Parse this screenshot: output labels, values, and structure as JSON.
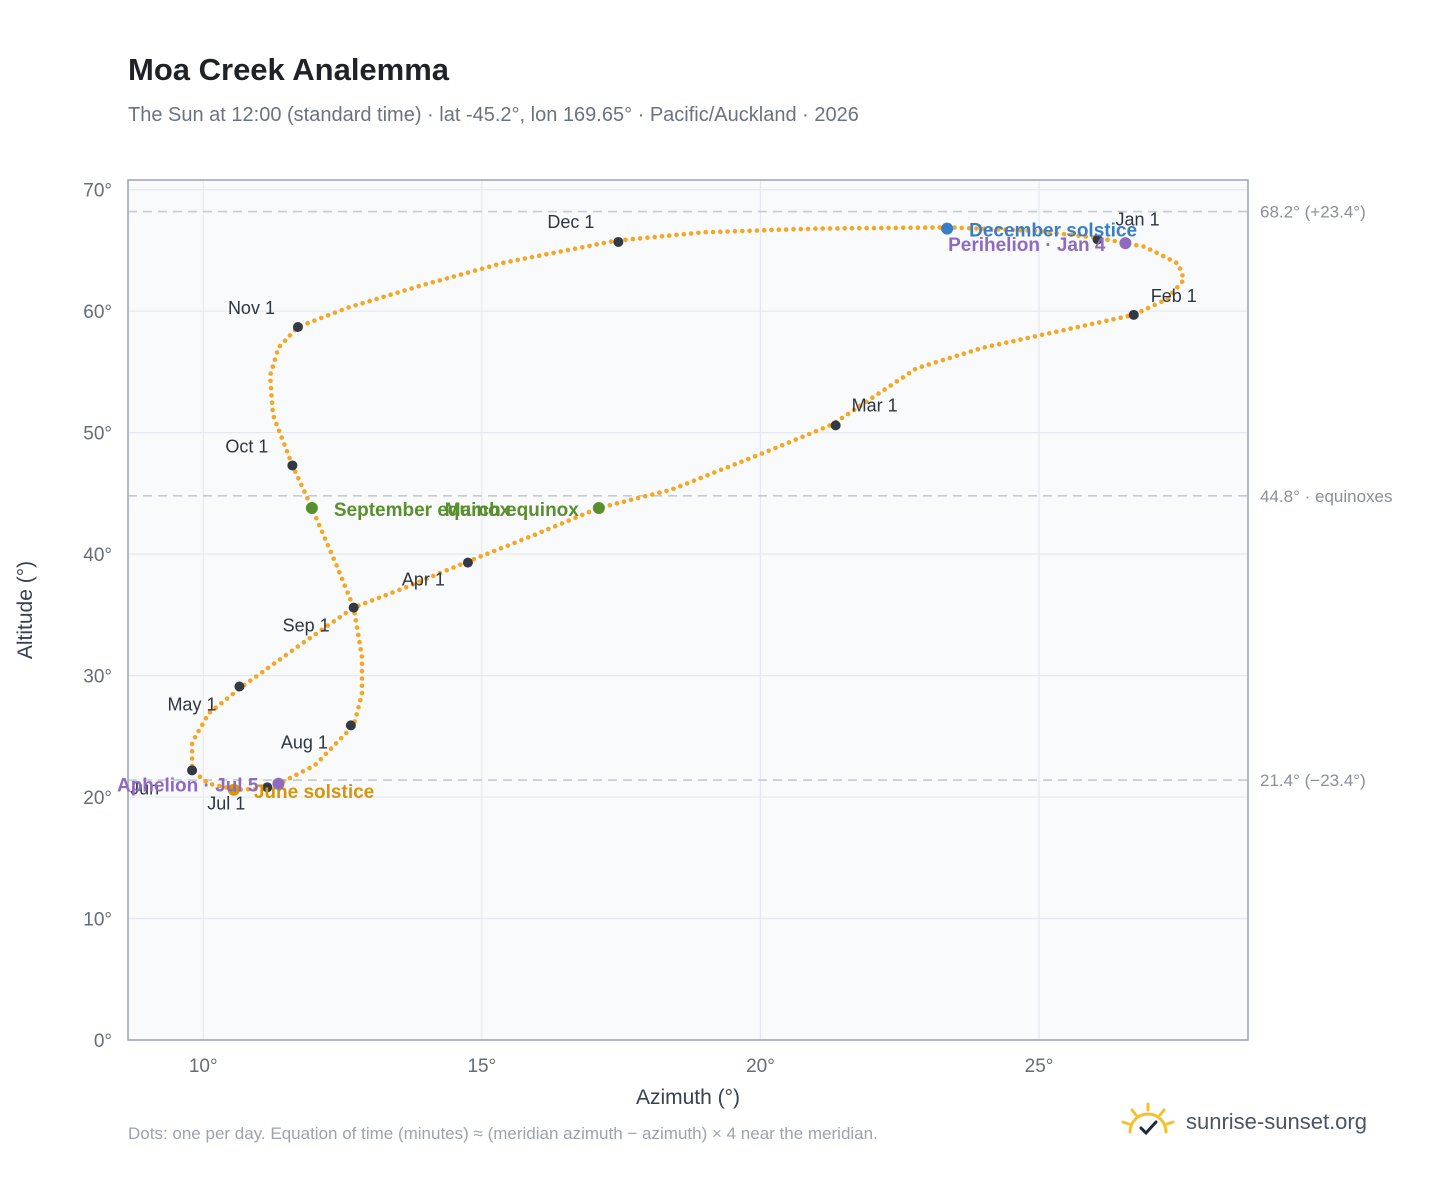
{
  "title": "Moa Creek Analemma",
  "subtitle": "The Sun at 12:00 (standard time) · lat -45.2°, lon 169.65° · Pacific/Auckland · 2026",
  "footnote": "Dots: one per day. Equation of time (minutes) ≈ (meridian azimuth − azimuth) × 4 near the meridian.",
  "brand": "sunrise-sunset.org",
  "brand_icon": "sun-checkmark-icon",
  "colors": {
    "curve": "#f5a623",
    "month_marker": "#333a44",
    "june_solstice": "#d4950f",
    "december_solstice": "#3b7dc4",
    "equinox": "#5a8f2e",
    "apsis": "#8e6bbf",
    "plot_bg": "#f8fafc",
    "grid": "#e5e9ef",
    "ref_line": "#c5cad3",
    "frame": "#9aa3b0"
  },
  "chart_data": {
    "type": "scatter",
    "title": "Moa Creek Analemma",
    "xlabel": "Azimuth (°)",
    "ylabel": "Altitude (°)",
    "xlim": [
      8.65,
      28.75
    ],
    "ylim": [
      0,
      70.8
    ],
    "grid": true,
    "x_ticks": [
      {
        "value": 10,
        "label": "10°"
      },
      {
        "value": 15,
        "label": "15°"
      },
      {
        "value": 20,
        "label": "20°"
      },
      {
        "value": 25,
        "label": "25°"
      }
    ],
    "y_ticks": [
      {
        "value": 0,
        "label": "0°"
      },
      {
        "value": 10,
        "label": "10°"
      },
      {
        "value": 20,
        "label": "20°"
      },
      {
        "value": 30,
        "label": "30°"
      },
      {
        "value": 40,
        "label": "40°"
      },
      {
        "value": 50,
        "label": "50°"
      },
      {
        "value": 60,
        "label": "60°"
      },
      {
        "value": 70,
        "label": "70°"
      }
    ],
    "reference_lines": [
      {
        "y": 68.2,
        "label": "68.2° (+23.4°)"
      },
      {
        "y": 44.8,
        "label": "44.8° · equinoxes"
      },
      {
        "y": 21.4,
        "label": "21.4° (−23.4°)"
      }
    ],
    "path_points": [
      [
        26.1,
        66.0
      ],
      [
        26.9,
        65.3
      ],
      [
        27.5,
        63.9
      ],
      [
        27.6,
        62.6
      ],
      [
        27.3,
        61.0
      ],
      [
        26.7,
        59.7
      ],
      [
        25.5,
        58.5
      ],
      [
        24.0,
        57.0
      ],
      [
        22.8,
        55.3
      ],
      [
        21.3,
        50.7
      ],
      [
        20.2,
        48.6
      ],
      [
        18.4,
        45.3
      ],
      [
        17.1,
        43.8
      ],
      [
        15.9,
        41.5
      ],
      [
        14.7,
        39.3
      ],
      [
        13.6,
        37.2
      ],
      [
        12.7,
        35.6
      ],
      [
        11.7,
        32.4
      ],
      [
        10.7,
        29.1
      ],
      [
        10.1,
        26.9
      ],
      [
        9.8,
        24.5
      ],
      [
        9.8,
        22.2
      ],
      [
        10.1,
        21.1
      ],
      [
        10.6,
        20.6
      ],
      [
        11.1,
        20.7
      ],
      [
        11.4,
        21.2
      ],
      [
        12.0,
        22.6
      ],
      [
        12.7,
        25.9
      ],
      [
        12.85,
        28.5
      ],
      [
        12.85,
        31.5
      ],
      [
        12.7,
        35.6
      ],
      [
        12.4,
        39.0
      ],
      [
        11.95,
        43.8
      ],
      [
        11.6,
        47.3
      ],
      [
        11.25,
        51.5
      ],
      [
        11.2,
        54.7
      ],
      [
        11.35,
        57.0
      ],
      [
        11.7,
        58.7
      ],
      [
        12.6,
        60.3
      ],
      [
        13.9,
        62.1
      ],
      [
        15.4,
        64.0
      ],
      [
        17.4,
        65.8
      ],
      [
        19.0,
        66.5
      ],
      [
        21.0,
        66.8
      ],
      [
        23.4,
        66.9
      ],
      [
        25.0,
        66.6
      ],
      [
        26.1,
        66.0
      ]
    ],
    "months": [
      {
        "label": "Jan 1",
        "x": 26.05,
        "y": 65.9,
        "dx": 18,
        "dy": -14,
        "anchor": "start"
      },
      {
        "label": "Feb 1",
        "x": 26.7,
        "y": 59.7,
        "dx": 17,
        "dy": -13,
        "anchor": "start"
      },
      {
        "label": "Mar 1",
        "x": 21.35,
        "y": 50.6,
        "dx": 16,
        "dy": -14,
        "anchor": "start"
      },
      {
        "label": "Apr 1",
        "x": 14.75,
        "y": 39.3,
        "dx": -66,
        "dy": 23,
        "anchor": "start"
      },
      {
        "label": "May 1",
        "x": 10.65,
        "y": 29.1,
        "dx": -72,
        "dy": 24,
        "anchor": "start"
      },
      {
        "label": "Jun",
        "x": 9.8,
        "y": 22.2,
        "dx": -62,
        "dy": 24,
        "anchor": "start"
      },
      {
        "label": "Jul 1",
        "x": 11.15,
        "y": 20.8,
        "dx": -60,
        "dy": 22,
        "anchor": "start"
      },
      {
        "label": "Aug 1",
        "x": 12.65,
        "y": 25.9,
        "dx": -70,
        "dy": 23,
        "anchor": "start"
      },
      {
        "label": "Sep 1",
        "x": 12.7,
        "y": 35.6,
        "dx": -71,
        "dy": 24,
        "anchor": "start"
      },
      {
        "label": "Oct 1",
        "x": 11.6,
        "y": 47.3,
        "dx": -67,
        "dy": -13,
        "anchor": "start"
      },
      {
        "label": "Nov 1",
        "x": 11.7,
        "y": 58.7,
        "dx": -70,
        "dy": -13,
        "anchor": "start"
      },
      {
        "label": "Dec 1",
        "x": 17.45,
        "y": 65.7,
        "dx": -71,
        "dy": -14,
        "anchor": "start"
      }
    ],
    "events": [
      {
        "label": "June solstice",
        "x": 10.55,
        "y": 20.6,
        "color": "#d4950f",
        "dx": 20,
        "dy": 8,
        "anchor": "start"
      },
      {
        "label": "December solstice",
        "x": 23.35,
        "y": 66.8,
        "color": "#3b7dc4",
        "dx": 22,
        "dy": 8,
        "anchor": "start"
      },
      {
        "label": "March equinox",
        "x": 17.1,
        "y": 43.8,
        "color": "#5a8f2e",
        "dx": -20,
        "dy": 8,
        "anchor": "end"
      },
      {
        "label": "September equinox",
        "x": 11.95,
        "y": 43.8,
        "color": "#5a8f2e",
        "dx": 22,
        "dy": 8,
        "anchor": "start"
      },
      {
        "label": "Perihelion · Jan 4",
        "x": 26.55,
        "y": 65.6,
        "color": "#8e6bbf",
        "dx": -20,
        "dy": 8,
        "anchor": "end"
      },
      {
        "label": "Aphelion · Jul 5",
        "x": 11.35,
        "y": 21.1,
        "color": "#8e6bbf",
        "dx": -20,
        "dy": 8,
        "anchor": "end"
      }
    ]
  }
}
